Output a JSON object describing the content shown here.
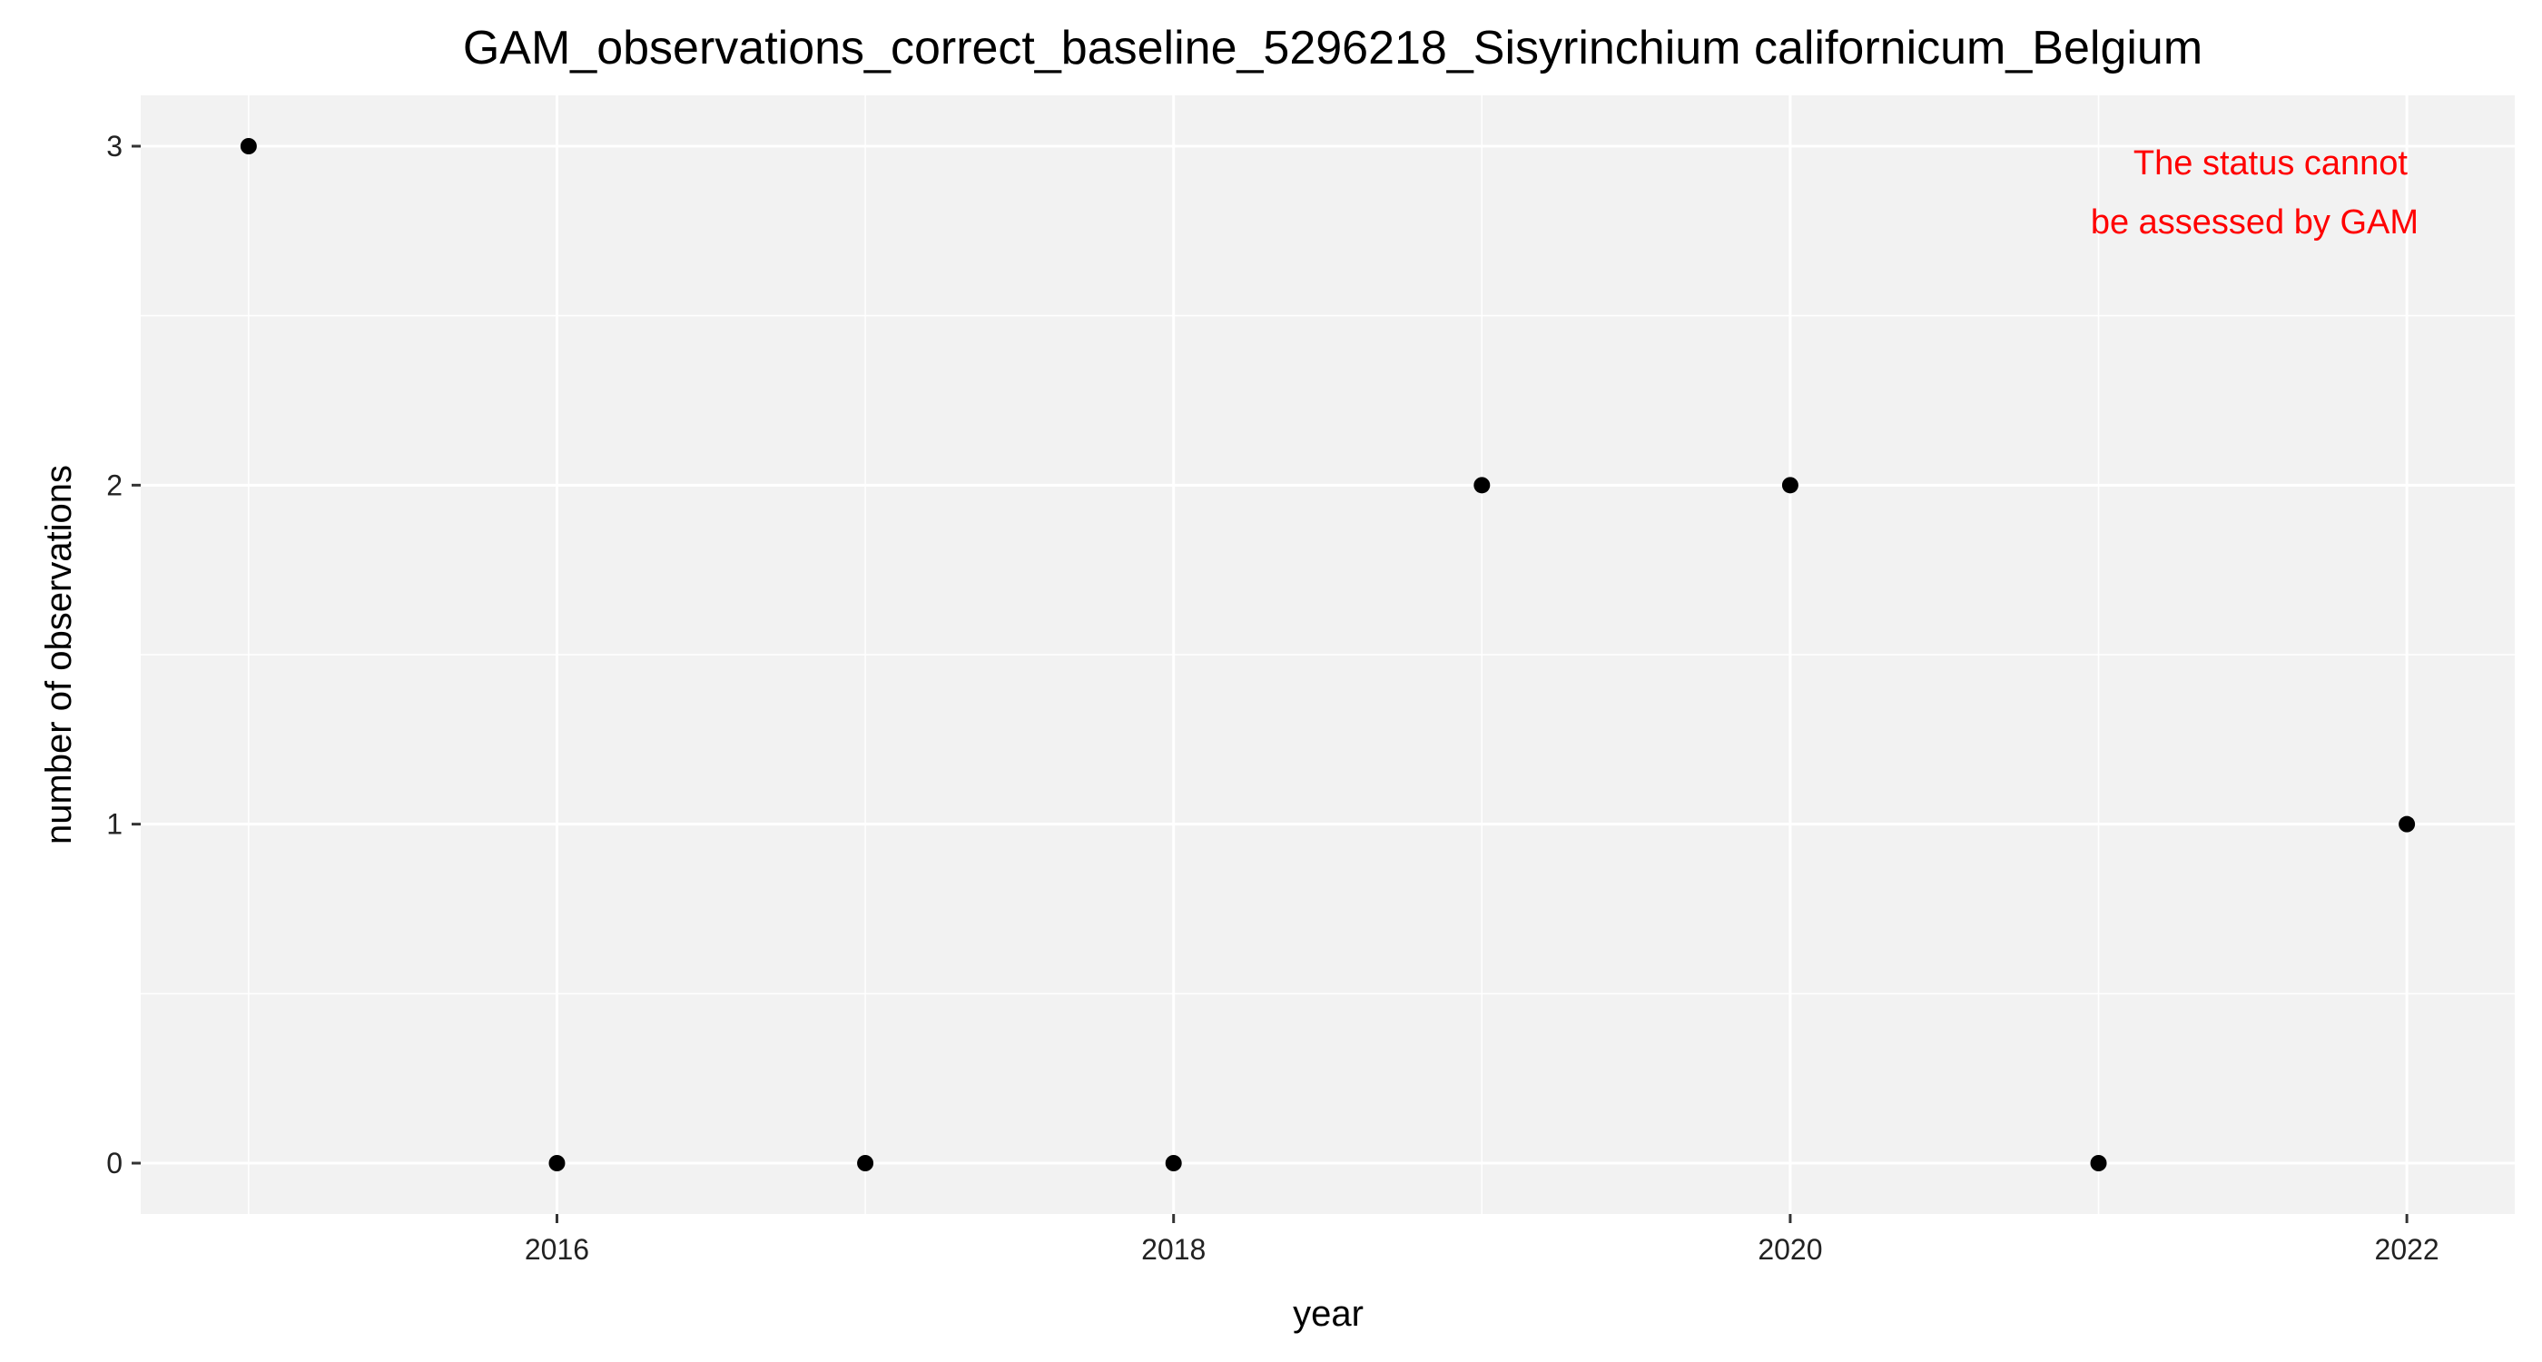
{
  "chart_data": {
    "type": "scatter",
    "title": "GAM_observations_correct_baseline_5296218_Sisyrinchium californicum_Belgium",
    "xlabel": "year",
    "ylabel": "number of observations",
    "x": [
      2015,
      2016,
      2017,
      2018,
      2019,
      2020,
      2021,
      2022
    ],
    "y": [
      3,
      0,
      0,
      0,
      2,
      2,
      0,
      1
    ],
    "xlim": [
      2014.65,
      2022.35
    ],
    "ylim": [
      -0.15,
      3.15
    ],
    "x_ticks": [
      2016,
      2018,
      2020,
      2022
    ],
    "x_tick_labels": [
      "2016",
      "2018",
      "2020",
      "2022"
    ],
    "y_ticks": [
      0,
      1,
      2,
      3
    ],
    "y_tick_labels": [
      "0",
      "1",
      "2",
      "3"
    ],
    "grid": true,
    "annotation": {
      "lines": [
        "The status cannot",
        "be assessed by GAM"
      ],
      "color": "#ff0000",
      "placement": "top-right"
    },
    "colors": {
      "panel_background": "#f2f2f2",
      "grid": "#ffffff",
      "point": "#000000"
    }
  }
}
